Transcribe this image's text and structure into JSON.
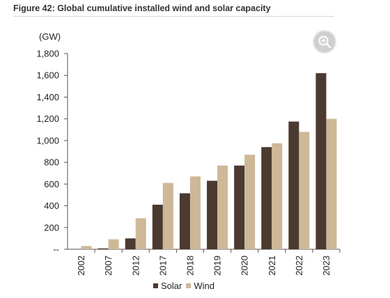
{
  "figure": {
    "title": "Figure 42: Global cumulative installed wind and solar capacity"
  },
  "zoom": {
    "icon": "zoom-in-icon"
  },
  "chart_data": {
    "type": "bar",
    "title": "Figure 42: Global cumulative installed wind and solar capacity",
    "ylabel": "(GW)",
    "xlabel": "",
    "categories": [
      "2002",
      "2007",
      "2012",
      "2017",
      "2018",
      "2019",
      "2020",
      "2021",
      "2022",
      "2023"
    ],
    "series": [
      {
        "name": "Solar",
        "color": "#4a3a30",
        "values": [
          2,
          8,
          100,
          410,
          515,
          630,
          770,
          940,
          1175,
          1620
        ]
      },
      {
        "name": "Wind",
        "color": "#cdb898",
        "values": [
          30,
          92,
          285,
          610,
          670,
          770,
          870,
          975,
          1080,
          1200
        ]
      }
    ],
    "ylim": [
      0,
      1800
    ],
    "yticks": [
      0,
      200,
      400,
      600,
      800,
      1000,
      1200,
      1400,
      1600,
      1800
    ],
    "ytick_labels": [
      "--",
      "200",
      "400",
      "600",
      "800",
      "1,000",
      "1,200",
      "1,400",
      "1,600",
      "1,800"
    ],
    "grid": false,
    "legend_position": "bottom"
  }
}
